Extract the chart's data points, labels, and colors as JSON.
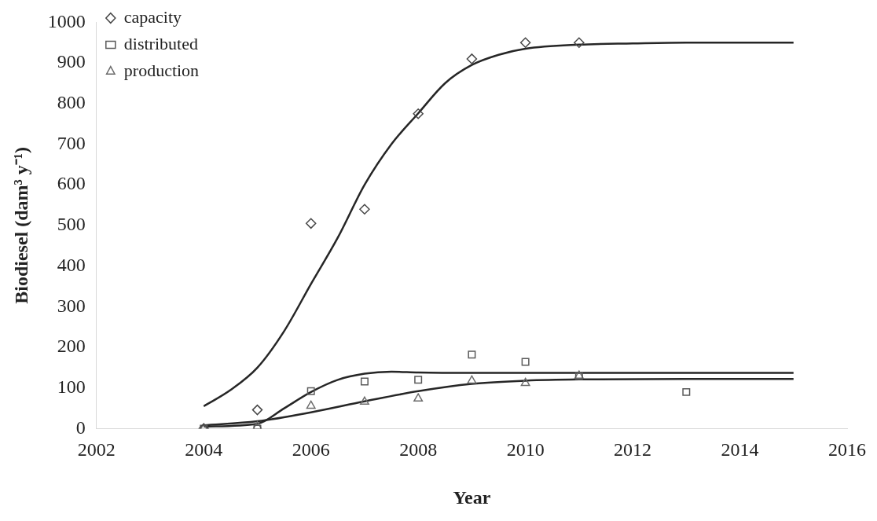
{
  "chart_data": {
    "type": "scatter",
    "xlabel": "Year",
    "ylabel": "Biodiesel (dam³ y⁻¹)",
    "xlim": [
      2002,
      2016
    ],
    "xticks": [
      2002,
      2004,
      2006,
      2008,
      2010,
      2012,
      2014,
      2016
    ],
    "ylim": [
      0,
      1000
    ],
    "yticks": [
      0,
      100,
      200,
      300,
      400,
      500,
      600,
      700,
      800,
      900,
      1000
    ],
    "grid": false,
    "legend": "top left",
    "series": [
      {
        "name": "capacity",
        "color": "#474747",
        "marker": "diamond",
        "x": [
          2004,
          2005,
          2006,
          2007,
          2008,
          2009,
          2010,
          2011
        ],
        "values": [
          0,
          46,
          505,
          540,
          775,
          910,
          950,
          950
        ]
      },
      {
        "name": "distributed",
        "color": "#595959",
        "marker": "square",
        "x": [
          2004,
          2005,
          2006,
          2007,
          2008,
          2009,
          2010,
          2011,
          2013
        ],
        "values": [
          0,
          0,
          92,
          116,
          120,
          182,
          164,
          130,
          90
        ]
      },
      {
        "name": "production",
        "color": "#6b6b6b",
        "marker": "triangle",
        "x": [
          2004,
          2005,
          2006,
          2007,
          2008,
          2009,
          2010,
          2011
        ],
        "values": [
          0,
          5,
          56,
          66,
          74,
          118,
          112,
          130
        ]
      },
      {
        "type": "line",
        "color": "#262626",
        "marker": "none",
        "x": [
          2004,
          2004.5,
          2005,
          2005.5,
          2006,
          2006.5,
          2007,
          2007.5,
          2008,
          2008.5,
          2009,
          2009.5,
          2010,
          2011,
          2012,
          2013,
          2015
        ],
        "values": [
          55,
          95,
          150,
          240,
          356,
          470,
          600,
          700,
          776,
          850,
          895,
          920,
          935,
          945,
          948,
          950,
          950
        ]
      },
      {
        "type": "line",
        "color": "#262626",
        "marker": "none",
        "x": [
          2004,
          2005,
          2005.5,
          2006,
          2006.5,
          2007,
          2007.5,
          2008,
          2009,
          2011,
          2015
        ],
        "values": [
          5,
          12,
          50,
          90,
          120,
          135,
          140,
          138,
          137,
          137,
          137
        ]
      },
      {
        "type": "line",
        "color": "#262626",
        "marker": "none",
        "x": [
          2004,
          2005,
          2006,
          2007,
          2008,
          2009,
          2010,
          2011,
          2013,
          2015
        ],
        "values": [
          8,
          18,
          40,
          67,
          92,
          110,
          118,
          121,
          122,
          122
        ]
      }
    ]
  }
}
